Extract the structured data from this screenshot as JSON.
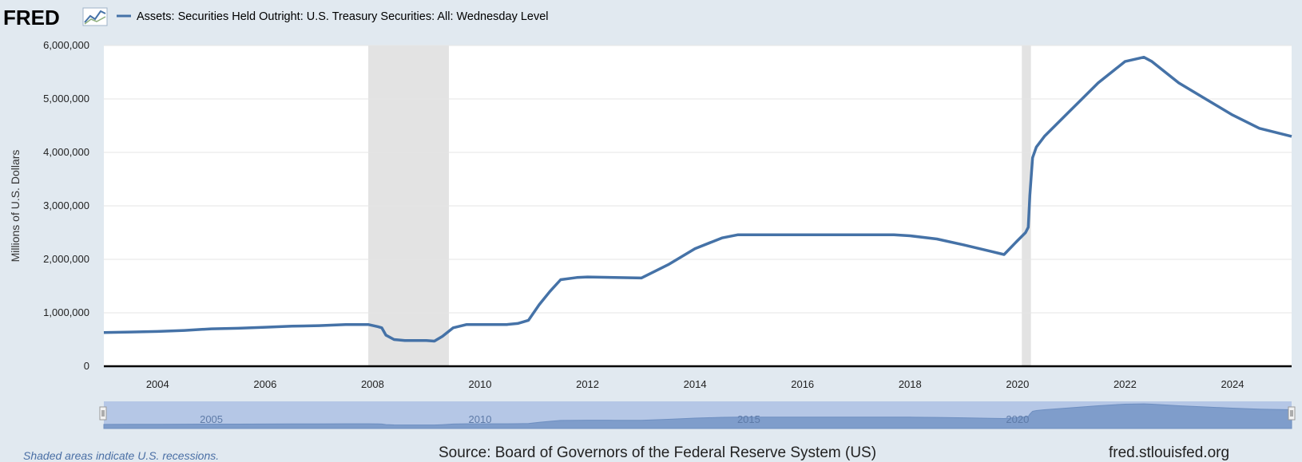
{
  "header": {
    "logo_text": "FRED",
    "legend_label": "Assets: Securities Held Outright: U.S. Treasury Securities: All: Wednesday Level",
    "series_color": "#4572a7"
  },
  "footer": {
    "recession_note": "Shaded areas indicate U.S. recessions.",
    "source": "Source: Board of Governors of the Federal Reserve System (US)",
    "url": "fred.stlouisfed.org"
  },
  "navigator": {
    "year_labels": [
      "2005",
      "2010",
      "2015",
      "2020"
    ],
    "fill_color": "#b5c7e6"
  },
  "chart_data": {
    "type": "line",
    "title": "",
    "xlabel": "",
    "ylabel": "Millions of U.S. Dollars",
    "xlim": [
      2003.0,
      2025.1
    ],
    "ylim": [
      0,
      6000000
    ],
    "x_ticks": [
      "2004",
      "2006",
      "2008",
      "2010",
      "2012",
      "2014",
      "2016",
      "2018",
      "2020",
      "2022",
      "2024"
    ],
    "y_ticks": [
      "0",
      "1,000,000",
      "2,000,000",
      "3,000,000",
      "4,000,000",
      "5,000,000",
      "6,000,000"
    ],
    "grid": true,
    "recessions": [
      {
        "start": 2007.92,
        "end": 2009.42
      },
      {
        "start": 2020.08,
        "end": 2020.25
      }
    ],
    "series": [
      {
        "name": "Assets: Securities Held Outright: U.S. Treasury Securities: All: Wednesday Level",
        "x": [
          2003.0,
          2003.5,
          2004.0,
          2004.5,
          2005.0,
          2005.5,
          2006.0,
          2006.5,
          2007.0,
          2007.5,
          2007.92,
          2008.1,
          2008.17,
          2008.25,
          2008.4,
          2008.6,
          2009.0,
          2009.15,
          2009.3,
          2009.5,
          2009.75,
          2010.0,
          2010.5,
          2010.7,
          2010.9,
          2011.1,
          2011.3,
          2011.5,
          2011.8,
          2012.0,
          2012.5,
          2013.0,
          2013.5,
          2014.0,
          2014.5,
          2014.8,
          2015.0,
          2016.0,
          2017.0,
          2017.7,
          2018.0,
          2018.5,
          2019.0,
          2019.5,
          2019.75,
          2020.0,
          2020.15,
          2020.2,
          2020.23,
          2020.28,
          2020.35,
          2020.5,
          2021.0,
          2021.5,
          2022.0,
          2022.35,
          2022.5,
          2023.0,
          2023.5,
          2024.0,
          2024.5,
          2025.1
        ],
        "values": [
          630000,
          640000,
          650000,
          670000,
          700000,
          710000,
          730000,
          750000,
          760000,
          780000,
          780000,
          740000,
          720000,
          580000,
          500000,
          480000,
          480000,
          470000,
          560000,
          720000,
          780000,
          780000,
          780000,
          800000,
          860000,
          1150000,
          1400000,
          1620000,
          1660000,
          1670000,
          1660000,
          1650000,
          1900000,
          2200000,
          2400000,
          2460000,
          2460000,
          2460000,
          2460000,
          2460000,
          2440000,
          2380000,
          2270000,
          2150000,
          2090000,
          2350000,
          2500000,
          2600000,
          3200000,
          3900000,
          4100000,
          4300000,
          4800000,
          5300000,
          5700000,
          5780000,
          5700000,
          5300000,
          5000000,
          4700000,
          4450000,
          4300000
        ]
      }
    ]
  }
}
